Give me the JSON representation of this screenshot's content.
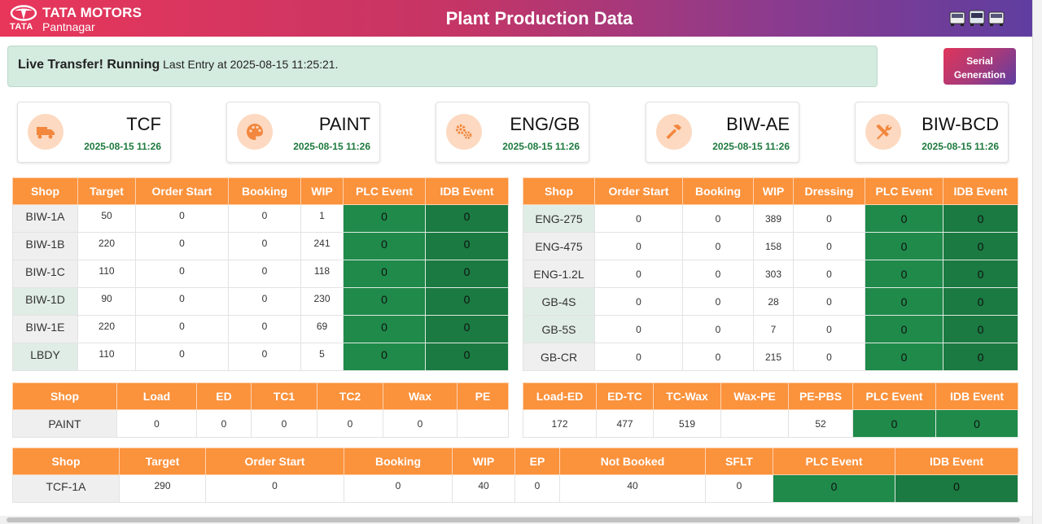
{
  "header": {
    "brand": "TATA MOTORS",
    "brand_mark": "TATA",
    "location": "Pantnagar",
    "title": "Plant Production Data"
  },
  "status": {
    "label": "Live Transfer! Running",
    "detail": "Last Entry at 2025-08-15 11:25:21."
  },
  "serial_button": {
    "line1": "Serial",
    "line2": "Generation"
  },
  "cards": [
    {
      "name": "TCF",
      "time": "2025-08-15 11:26",
      "icon": "truck-icon"
    },
    {
      "name": "PAINT",
      "time": "2025-08-15 11:26",
      "icon": "palette-icon"
    },
    {
      "name": "ENG/GB",
      "time": "2025-08-15 11:26",
      "icon": "gears-icon"
    },
    {
      "name": "BIW-AE",
      "time": "2025-08-15 11:26",
      "icon": "hammer-icon"
    },
    {
      "name": "BIW-BCD",
      "time": "2025-08-15 11:26",
      "icon": "tools-icon"
    }
  ],
  "biw_table": {
    "headers": [
      "Shop",
      "Target",
      "Order Start",
      "Booking",
      "WIP",
      "PLC Event",
      "IDB Event"
    ],
    "rows": [
      [
        "BIW-1A",
        "50",
        "0",
        "0",
        "1",
        "0",
        "0"
      ],
      [
        "BIW-1B",
        "220",
        "0",
        "0",
        "241",
        "0",
        "0"
      ],
      [
        "BIW-1C",
        "110",
        "0",
        "0",
        "118",
        "0",
        "0"
      ],
      [
        "BIW-1D",
        "90",
        "0",
        "0",
        "230",
        "0",
        "0"
      ],
      [
        "BIW-1E",
        "220",
        "0",
        "0",
        "69",
        "0",
        "0"
      ],
      [
        "LBDY",
        "110",
        "0",
        "0",
        "5",
        "0",
        "0"
      ]
    ]
  },
  "eng_table": {
    "headers": [
      "Shop",
      "Order Start",
      "Booking",
      "WIP",
      "Dressing",
      "PLC Event",
      "IDB Event"
    ],
    "rows": [
      [
        "ENG-275",
        "0",
        "0",
        "389",
        "0",
        "0",
        "0"
      ],
      [
        "ENG-475",
        "0",
        "0",
        "158",
        "0",
        "0",
        "0"
      ],
      [
        "ENG-1.2L",
        "0",
        "0",
        "303",
        "0",
        "0",
        "0"
      ],
      [
        "GB-4S",
        "0",
        "0",
        "28",
        "0",
        "0",
        "0"
      ],
      [
        "GB-5S",
        "0",
        "0",
        "7",
        "0",
        "0",
        "0"
      ],
      [
        "GB-CR",
        "0",
        "0",
        "215",
        "0",
        "0",
        "0"
      ]
    ]
  },
  "paint_table": {
    "headers": [
      "Shop",
      "Load",
      "ED",
      "TC1",
      "TC2",
      "Wax",
      "PE"
    ],
    "row": [
      "PAINT",
      "0",
      "0",
      "0",
      "0",
      "0",
      ""
    ]
  },
  "paint_table2": {
    "headers": [
      "Load-ED",
      "ED-TC",
      "TC-Wax",
      "Wax-PE",
      "PE-PBS",
      "PLC Event",
      "IDB Event"
    ],
    "row": [
      "172",
      "477",
      "519",
      "",
      "52",
      "0",
      "0"
    ]
  },
  "tcf_table": {
    "headers": [
      "Shop",
      "Target",
      "Order Start",
      "Booking",
      "WIP",
      "EP",
      "Not Booked",
      "SFLT",
      "PLC Event",
      "IDB Event"
    ],
    "rows": [
      [
        "TCF-1A",
        "290",
        "0",
        "0",
        "40",
        "0",
        "40",
        "0",
        "0",
        "0"
      ]
    ]
  }
}
